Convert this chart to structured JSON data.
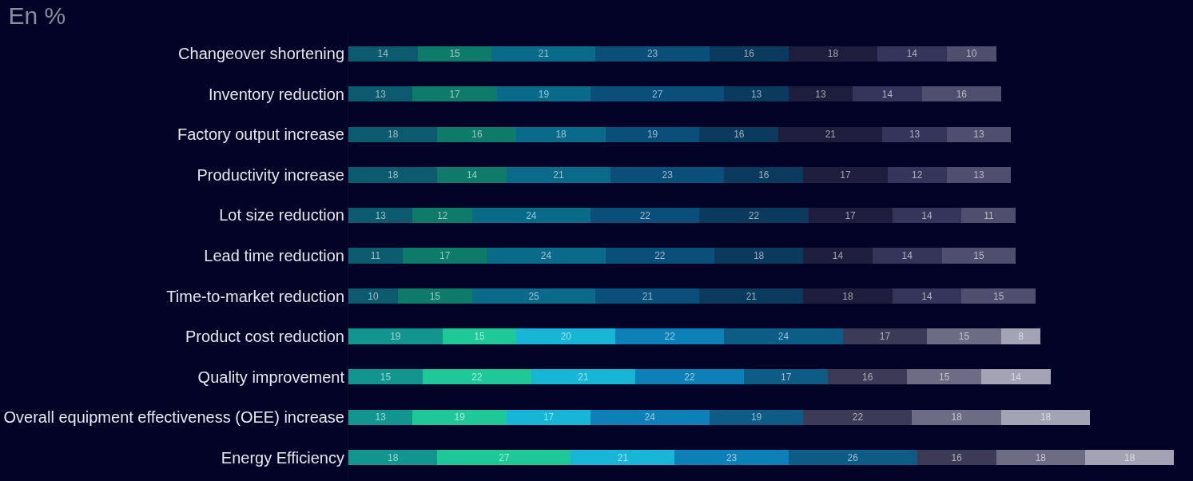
{
  "chart_data": {
    "type": "bar",
    "title": "En %",
    "orientation": "horizontal",
    "stacked": true,
    "data_labels": true,
    "grid": false,
    "tick_labels": "y",
    "xlim": [
      0,
      170
    ],
    "categories": [
      "Changeover shortening",
      "Inventory reduction",
      "Factory output increase",
      "Productivity increase",
      "Lot size reduction",
      "Lead time reduction",
      "Time-to-market reduction",
      "Product cost reduction",
      "Quality improvement",
      "Overall equipment effectiveness (OEE) increase",
      "Energy Efficiency"
    ],
    "series": [
      {
        "values": [
          14,
          13,
          18,
          18,
          13,
          11,
          10,
          19,
          15,
          13,
          18
        ],
        "colors": [
          "#0b5a6e",
          "#0b5a6e",
          "#0b5a6e",
          "#0b5a6e",
          "#0b5a6e",
          "#0b5a6e",
          "#0b5a6e",
          "#12958f",
          "#12958f",
          "#12958f",
          "#12958f"
        ]
      },
      {
        "values": [
          15,
          17,
          16,
          14,
          12,
          17,
          15,
          15,
          22,
          19,
          27
        ],
        "colors": [
          "#0e7a6a",
          "#0e7a6a",
          "#0e7a6a",
          "#0e7a6a",
          "#0e7a6a",
          "#0e7a6a",
          "#0e7a6a",
          "#1fc997",
          "#1fc997",
          "#1fc997",
          "#1fc997"
        ]
      },
      {
        "values": [
          21,
          19,
          18,
          21,
          24,
          24,
          25,
          20,
          21,
          17,
          21
        ],
        "colors": [
          "#0a6a8a",
          "#0a6a8a",
          "#0a6a8a",
          "#0a6a8a",
          "#0a6a8a",
          "#0a6a8a",
          "#0a6a8a",
          "#17b5d6",
          "#17b5d6",
          "#17b5d6",
          "#17b5d6"
        ]
      },
      {
        "values": [
          23,
          27,
          19,
          23,
          22,
          22,
          21,
          22,
          22,
          24,
          23
        ],
        "colors": [
          "#0a4f7a",
          "#0a4f7a",
          "#0a4f7a",
          "#0a4f7a",
          "#0a4f7a",
          "#0a4f7a",
          "#0a4f7a",
          "#0e80b8",
          "#0e80b8",
          "#0e80b8",
          "#0e80b8"
        ]
      },
      {
        "values": [
          16,
          13,
          16,
          16,
          22,
          18,
          21,
          24,
          17,
          19,
          26
        ],
        "colors": [
          "#0a3a5e",
          "#0a3a5e",
          "#0a3a5e",
          "#0a3a5e",
          "#0a3a5e",
          "#0a3a5e",
          "#0a3a5e",
          "#0d5c85",
          "#0d5c85",
          "#0d5c85",
          "#0d5c85"
        ]
      },
      {
        "values": [
          18,
          13,
          21,
          17,
          17,
          14,
          18,
          17,
          16,
          22,
          16
        ],
        "colors": [
          "#1e1d3d",
          "#1e1d3d",
          "#1e1d3d",
          "#1e1d3d",
          "#1e1d3d",
          "#1e1d3d",
          "#1e1d3d",
          "#3c3a57",
          "#3c3a57",
          "#3c3a57",
          "#3c3a57"
        ]
      },
      {
        "values": [
          14,
          14,
          13,
          12,
          14,
          14,
          14,
          15,
          15,
          18,
          18
        ],
        "colors": [
          "#35345a",
          "#35345a",
          "#35345a",
          "#35345a",
          "#35345a",
          "#35345a",
          "#35345a",
          "#6d6c84",
          "#6d6c84",
          "#6d6c84",
          "#6d6c84"
        ]
      },
      {
        "values": [
          10,
          16,
          13,
          13,
          11,
          15,
          15,
          8,
          14,
          18,
          18
        ],
        "colors": [
          "#4f4e6e",
          "#4f4e6e",
          "#4f4e6e",
          "#4f4e6e",
          "#4f4e6e",
          "#4f4e6e",
          "#4f4e6e",
          "#a4a3b5",
          "#a4a3b5",
          "#a4a3b5",
          "#a4a3b5"
        ]
      }
    ]
  }
}
